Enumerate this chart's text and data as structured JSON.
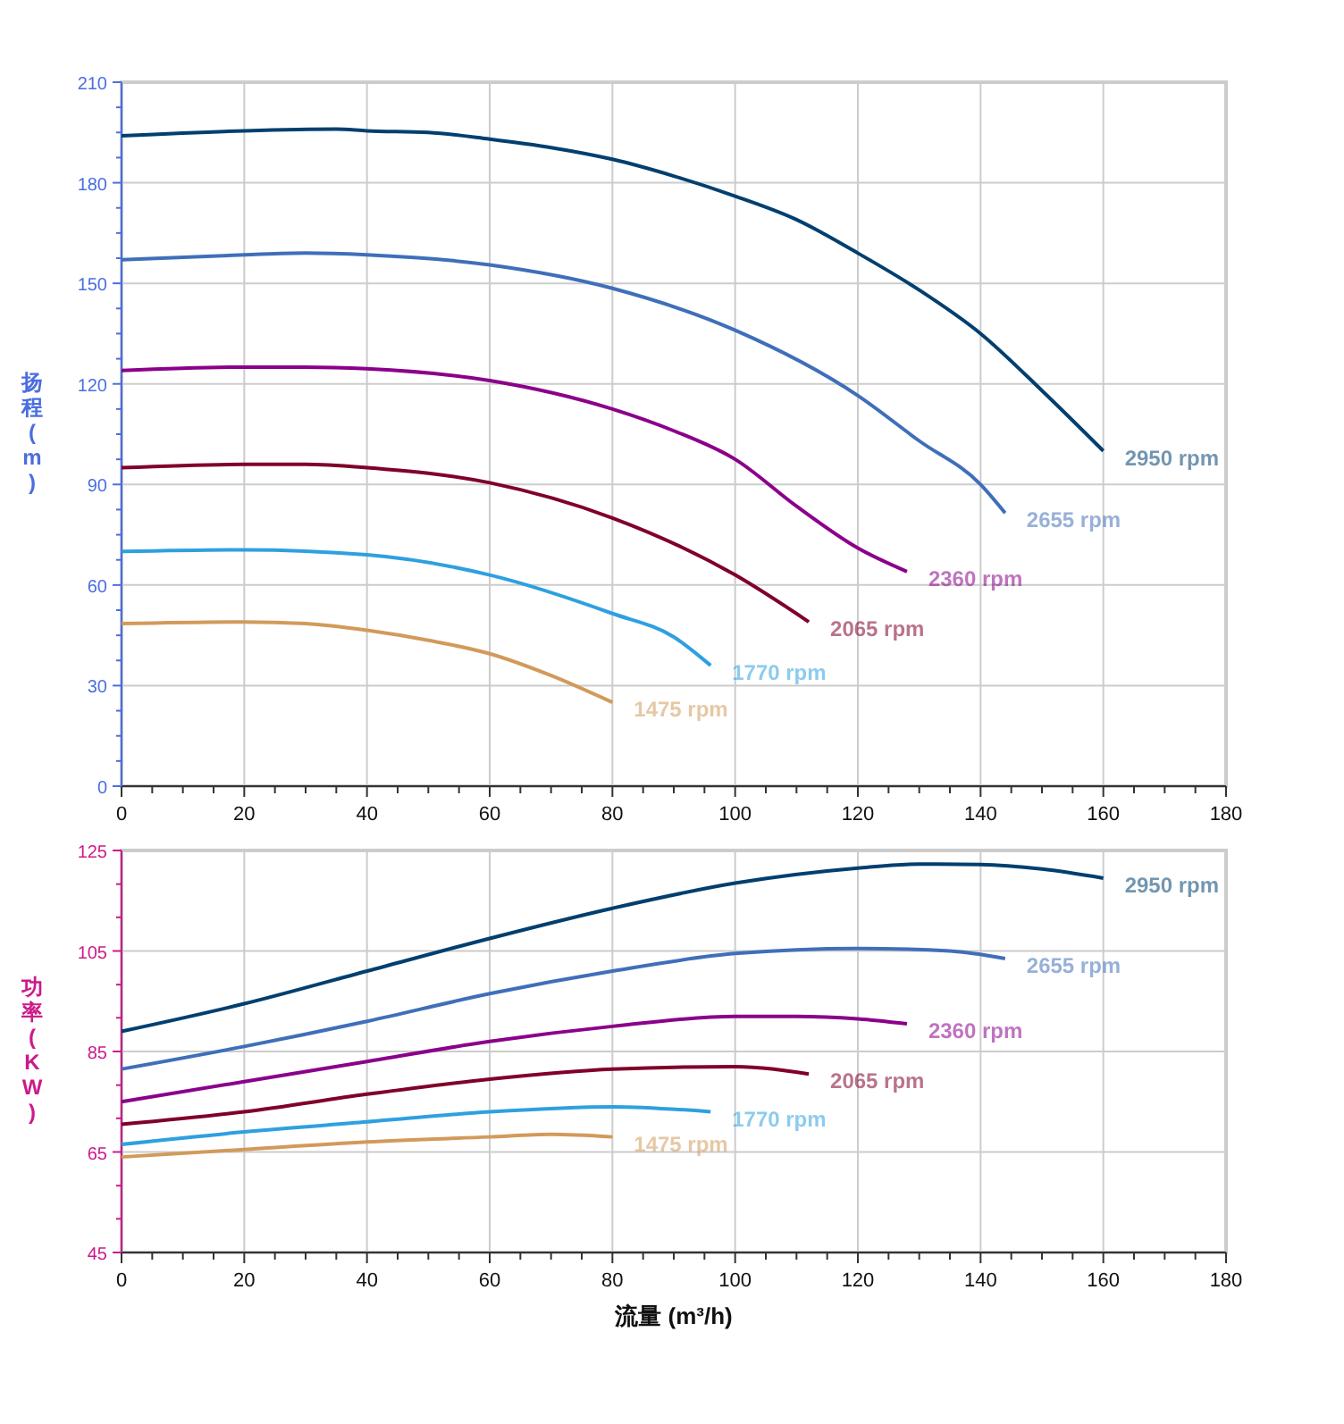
{
  "chart_data": [
    {
      "type": "line",
      "ylabel": "扬程 (m)",
      "xlim": [
        0,
        180
      ],
      "ylim": [
        0,
        210
      ],
      "xticks": [
        0,
        {
          "value": 5,
          "label": null
        },
        {
          "value": 10,
          "label": null
        },
        {
          "value": 15,
          "label": null
        },
        20,
        {
          "value": 25,
          "label": null
        },
        {
          "value": 30,
          "label": null
        },
        {
          "value": 35,
          "label": null
        },
        40,
        {
          "value": 45,
          "label": null
        },
        {
          "value": 50,
          "label": null
        },
        {
          "value": 55,
          "label": null
        },
        60,
        {
          "value": 65,
          "label": null
        },
        {
          "value": 70,
          "label": null
        },
        {
          "value": 75,
          "label": null
        },
        80,
        {
          "value": 85,
          "label": null
        },
        {
          "value": 90,
          "label": null
        },
        {
          "value": 95,
          "label": null
        },
        100,
        {
          "value": 105,
          "label": null
        },
        {
          "value": 110,
          "label": null
        },
        {
          "value": 115,
          "label": null
        },
        120,
        {
          "value": 125,
          "label": null
        },
        {
          "value": 130,
          "label": null
        },
        {
          "value": 135,
          "label": null
        },
        140,
        {
          "value": 145,
          "label": null
        },
        {
          "value": 150,
          "label": null
        },
        {
          "value": 155,
          "label": null
        },
        160,
        {
          "value": 165,
          "label": null
        },
        {
          "value": 170,
          "label": null
        },
        {
          "value": 175,
          "label": null
        },
        180
      ],
      "yticks": [
        0,
        {
          "value": 7.5,
          "label": null
        },
        {
          "value": 15,
          "label": null
        },
        {
          "value": 22.5,
          "label": null
        },
        30,
        {
          "value": 37.5,
          "label": null
        },
        {
          "value": 45,
          "label": null
        },
        {
          "value": 52.5,
          "label": null
        },
        60,
        {
          "value": 67.5,
          "label": null
        },
        {
          "value": 75,
          "label": null
        },
        {
          "value": 82.5,
          "label": null
        },
        90,
        {
          "value": 97.5,
          "label": null
        },
        {
          "value": 105,
          "label": null
        },
        {
          "value": 112.5,
          "label": null
        },
        120,
        {
          "value": 127.5,
          "label": null
        },
        {
          "value": 135,
          "label": null
        },
        {
          "value": 142.5,
          "label": null
        },
        150,
        {
          "value": 157.5,
          "label": null
        },
        {
          "value": 165,
          "label": null
        },
        {
          "value": 172.5,
          "label": null
        },
        180,
        {
          "value": 187.5,
          "label": null
        },
        {
          "value": 195,
          "label": null
        },
        {
          "value": 202.5,
          "label": null
        },
        210
      ],
      "grid": true,
      "legend": false,
      "marker": "none",
      "line_style": "solid",
      "series": [
        {
          "name": "2950 rpm",
          "color": "#003f6f",
          "x": [
            0,
            20,
            35,
            40,
            50,
            60,
            70,
            80,
            90,
            100,
            110,
            120,
            130,
            140,
            150,
            160
          ],
          "values": [
            194,
            195.5,
            196,
            195.5,
            195,
            193,
            190.5,
            187,
            182,
            176,
            169,
            159,
            148,
            135,
            118,
            100
          ]
        },
        {
          "name": "2655 rpm",
          "color": "#3f6fba",
          "x": [
            0,
            20,
            30,
            40,
            60,
            80,
            100,
            120,
            130,
            140,
            144
          ],
          "values": [
            157,
            158.5,
            159,
            158.5,
            155.5,
            148.5,
            136,
            116.5,
            103,
            90,
            81.5
          ]
        },
        {
          "name": "2360 rpm",
          "color": "#8b008b",
          "x": [
            0,
            20,
            30,
            40,
            60,
            80,
            90,
            100,
            110,
            120,
            128
          ],
          "values": [
            124,
            125,
            125,
            124.5,
            121,
            112.5,
            106,
            97.5,
            83.5,
            71,
            64
          ]
        },
        {
          "name": "2065 rpm",
          "color": "#80002a",
          "x": [
            0,
            20,
            30,
            40,
            60,
            80,
            100,
            112
          ],
          "values": [
            95,
            96,
            96,
            95,
            90.5,
            80,
            63,
            49
          ]
        },
        {
          "name": "1770 rpm",
          "color": "#2ea0e0",
          "x": [
            0,
            20,
            40,
            60,
            80,
            90,
            96
          ],
          "values": [
            70,
            70.5,
            69,
            63,
            51.5,
            44.5,
            36
          ]
        },
        {
          "name": "1475 rpm",
          "color": "#d29a5a",
          "x": [
            0,
            20,
            30,
            40,
            50,
            60,
            70,
            80
          ],
          "values": [
            48.5,
            49,
            48.5,
            46.5,
            43.5,
            39.5,
            33,
            25
          ]
        }
      ]
    },
    {
      "type": "line",
      "xlabel": "流量 (m³/h)",
      "ylabel": "功率 (KW)",
      "xlim": [
        0,
        180
      ],
      "ylim": [
        45,
        125
      ],
      "xticks": [
        0,
        {
          "value": 5,
          "label": null
        },
        {
          "value": 10,
          "label": null
        },
        {
          "value": 15,
          "label": null
        },
        20,
        {
          "value": 25,
          "label": null
        },
        {
          "value": 30,
          "label": null
        },
        {
          "value": 35,
          "label": null
        },
        40,
        {
          "value": 45,
          "label": null
        },
        {
          "value": 50,
          "label": null
        },
        {
          "value": 55,
          "label": null
        },
        60,
        {
          "value": 65,
          "label": null
        },
        {
          "value": 70,
          "label": null
        },
        {
          "value": 75,
          "label": null
        },
        80,
        {
          "value": 85,
          "label": null
        },
        {
          "value": 90,
          "label": null
        },
        {
          "value": 95,
          "label": null
        },
        100,
        {
          "value": 105,
          "label": null
        },
        {
          "value": 110,
          "label": null
        },
        {
          "value": 115,
          "label": null
        },
        120,
        {
          "value": 125,
          "label": null
        },
        {
          "value": 130,
          "label": null
        },
        {
          "value": 135,
          "label": null
        },
        140,
        {
          "value": 145,
          "label": null
        },
        {
          "value": 150,
          "label": null
        },
        {
          "value": 155,
          "label": null
        },
        160,
        {
          "value": 165,
          "label": null
        },
        {
          "value": 170,
          "label": null
        },
        {
          "value": 175,
          "label": null
        },
        180
      ],
      "yticks": [
        45,
        {
          "value": 51.7,
          "label": null
        },
        {
          "value": 58.3,
          "label": null
        },
        65,
        {
          "value": 71.7,
          "label": null
        },
        {
          "value": 78.3,
          "label": null
        },
        85,
        {
          "value": 91.7,
          "label": null
        },
        {
          "value": 98.3,
          "label": null
        },
        105,
        {
          "value": 111.7,
          "label": null
        },
        {
          "value": 118.3,
          "label": null
        },
        125
      ],
      "grid": true,
      "legend": false,
      "marker": "none",
      "line_style": "solid",
      "series": [
        {
          "name": "2950 rpm",
          "color": "#003f6f",
          "x": [
            0,
            20,
            40,
            60,
            80,
            100,
            120,
            130,
            140,
            150,
            160
          ],
          "values": [
            89,
            94.5,
            101,
            107.5,
            113.5,
            118.5,
            121.5,
            122.3,
            122.2,
            121.3,
            119.5
          ]
        },
        {
          "name": "2655 rpm",
          "color": "#3f6fba",
          "x": [
            0,
            20,
            40,
            60,
            80,
            100,
            120,
            135,
            144
          ],
          "values": [
            81.5,
            86,
            91,
            96.5,
            101,
            104.5,
            105.5,
            105,
            103.5
          ]
        },
        {
          "name": "2360 rpm",
          "color": "#8b008b",
          "x": [
            0,
            20,
            40,
            60,
            80,
            100,
            110,
            120,
            128
          ],
          "values": [
            75,
            79,
            83,
            87,
            90,
            92,
            92,
            91.5,
            90.5
          ]
        },
        {
          "name": "2065 rpm",
          "color": "#80002a",
          "x": [
            0,
            20,
            40,
            60,
            80,
            100,
            112
          ],
          "values": [
            70.5,
            73,
            76.5,
            79.5,
            81.5,
            82,
            80.5
          ]
        },
        {
          "name": "1770 rpm",
          "color": "#2ea0e0",
          "x": [
            0,
            20,
            40,
            60,
            80,
            96
          ],
          "values": [
            66.5,
            69,
            71,
            73,
            74,
            73
          ]
        },
        {
          "name": "1475 rpm",
          "color": "#d29a5a",
          "x": [
            0,
            20,
            40,
            60,
            70,
            80
          ],
          "values": [
            64,
            65.5,
            67,
            68,
            68.5,
            68
          ]
        }
      ]
    }
  ]
}
